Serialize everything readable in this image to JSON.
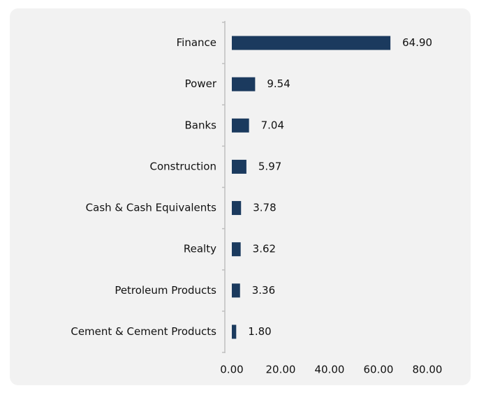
{
  "chart_data": {
    "type": "bar",
    "orientation": "horizontal",
    "categories": [
      "Finance",
      "Power",
      "Banks",
      "Construction",
      "Cash & Cash Equivalents",
      "Realty",
      "Petroleum Products",
      "Cement & Cement Products"
    ],
    "values": [
      64.9,
      9.54,
      7.04,
      5.97,
      3.78,
      3.62,
      3.36,
      1.8
    ],
    "value_labels": [
      "64.90",
      "9.54",
      "7.04",
      "5.97",
      "3.78",
      "3.62",
      "3.36",
      "1.80"
    ],
    "color": "#1b3a5e",
    "xlim": [
      0,
      80
    ],
    "xticks": [
      {
        "value": 0,
        "label": "0.00"
      },
      {
        "value": 20,
        "label": "20.00"
      },
      {
        "value": 40,
        "label": "40.00"
      },
      {
        "value": 60,
        "label": "60.00"
      },
      {
        "value": 80,
        "label": "80.00"
      }
    ],
    "grid": false
  }
}
